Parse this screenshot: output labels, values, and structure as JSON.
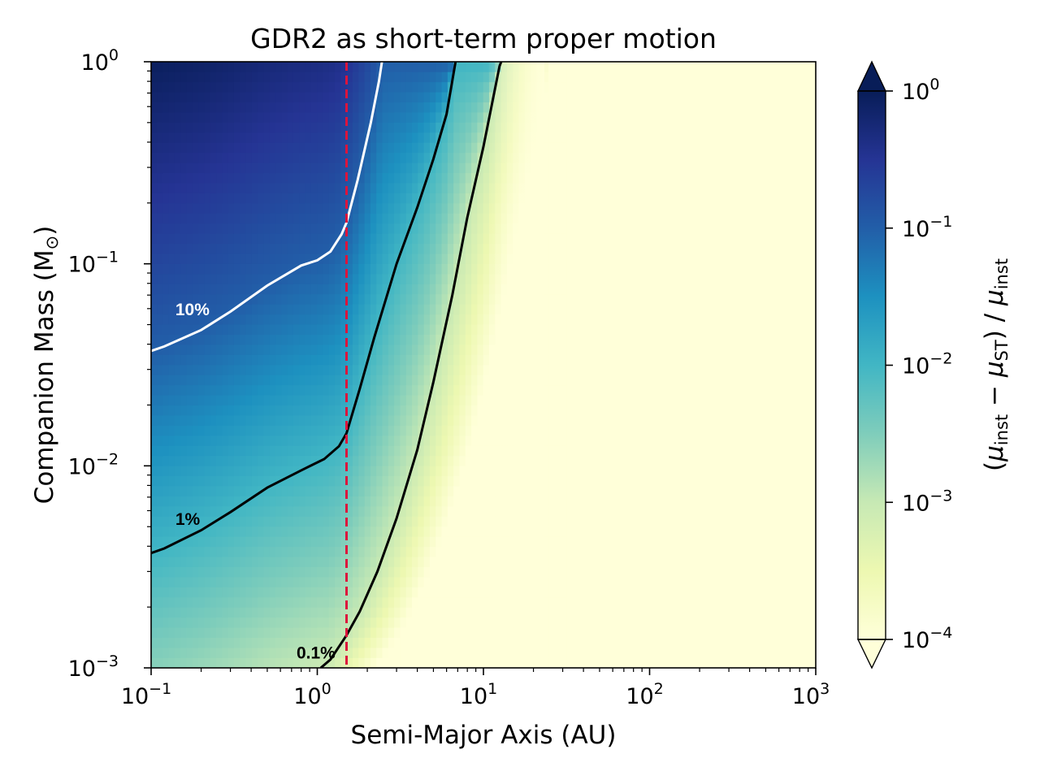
{
  "chart_data": {
    "type": "heatmap",
    "title": "GDR2 as short-term proper motion",
    "xlabel": "Semi-Major Axis (AU)",
    "ylabel": "Companion Mass (M",
    "ylabel_sub": "⊙",
    "ylabel_close": ")",
    "xscale": "log",
    "yscale": "log",
    "xlim": [
      0.1,
      1000
    ],
    "ylim": [
      0.001,
      1
    ],
    "x_ticks": [
      {
        "value": 0.1,
        "base": "10",
        "exp": "−1"
      },
      {
        "value": 1,
        "base": "10",
        "exp": "0"
      },
      {
        "value": 10,
        "base": "10",
        "exp": "1"
      },
      {
        "value": 100,
        "base": "10",
        "exp": "2"
      },
      {
        "value": 1000,
        "base": "10",
        "exp": "3"
      }
    ],
    "y_ticks": [
      {
        "value": 0.001,
        "base": "10",
        "exp": "−3"
      },
      {
        "value": 0.01,
        "base": "10",
        "exp": "−2"
      },
      {
        "value": 0.1,
        "base": "10",
        "exp": "−1"
      },
      {
        "value": 1,
        "base": "10",
        "exp": "0"
      }
    ],
    "colorbar": {
      "scale": "log",
      "range": [
        0.0001,
        1
      ],
      "extend": "both",
      "colormap": "YlGnBu",
      "colormap_stops": [
        "#ffffd9",
        "#edf8b1",
        "#c7e9b4",
        "#7fcdbb",
        "#41b6c4",
        "#1d91c0",
        "#225ea8",
        "#253494",
        "#081d58"
      ],
      "ticks": [
        {
          "value": 0.0001,
          "base": "10",
          "exp": "−4"
        },
        {
          "value": 0.001,
          "base": "10",
          "exp": "−3"
        },
        {
          "value": 0.01,
          "base": "10",
          "exp": "−2"
        },
        {
          "value": 0.1,
          "base": "10",
          "exp": "−1"
        },
        {
          "value": 1,
          "base": "10",
          "exp": "0"
        }
      ],
      "label": {
        "open": "(",
        "mu": "μ",
        "sub_inst": "inst",
        "minus": " − ",
        "sub_st": "ST",
        "close": ") / "
      }
    },
    "contours": [
      {
        "level": 0.1,
        "label": "10%",
        "color": "#ffffff",
        "label_at": [
          0.14,
          0.06
        ],
        "points": [
          [
            0.1,
            0.037
          ],
          [
            0.12,
            0.039
          ],
          [
            0.2,
            0.047
          ],
          [
            0.3,
            0.058
          ],
          [
            0.5,
            0.078
          ],
          [
            0.8,
            0.098
          ],
          [
            1.0,
            0.104
          ],
          [
            1.2,
            0.115
          ],
          [
            1.4,
            0.14
          ],
          [
            1.5,
            0.16
          ],
          [
            1.75,
            0.26
          ],
          [
            2.1,
            0.5
          ],
          [
            2.35,
            0.8
          ],
          [
            2.45,
            1.0
          ]
        ]
      },
      {
        "level": 0.01,
        "label": "1%",
        "color": "#000000",
        "label_at": [
          0.14,
          0.0055
        ],
        "points": [
          [
            0.1,
            0.0037
          ],
          [
            0.12,
            0.0039
          ],
          [
            0.2,
            0.0048
          ],
          [
            0.3,
            0.0059
          ],
          [
            0.5,
            0.0078
          ],
          [
            0.8,
            0.0095
          ],
          [
            1.1,
            0.0108
          ],
          [
            1.35,
            0.0125
          ],
          [
            1.5,
            0.0145
          ],
          [
            1.8,
            0.024
          ],
          [
            2.2,
            0.043
          ],
          [
            3.0,
            0.1
          ],
          [
            4.0,
            0.19
          ],
          [
            5.0,
            0.33
          ],
          [
            6.0,
            0.55
          ],
          [
            6.8,
            1.0
          ]
        ]
      },
      {
        "level": 0.001,
        "label": "0.1%",
        "color": "#000000",
        "label_at": [
          0.75,
          0.0012
        ],
        "points": [
          [
            1.05,
            0.001
          ],
          [
            1.2,
            0.0011
          ],
          [
            1.5,
            0.00145
          ],
          [
            1.8,
            0.0019
          ],
          [
            2.3,
            0.003
          ],
          [
            3.0,
            0.0055
          ],
          [
            4.0,
            0.012
          ],
          [
            5.0,
            0.026
          ],
          [
            6.5,
            0.07
          ],
          [
            8.0,
            0.17
          ],
          [
            10.0,
            0.38
          ],
          [
            12.5,
            0.95
          ],
          [
            12.8,
            1.0
          ]
        ]
      }
    ],
    "vline": {
      "x": 1.5,
      "color": "#dc143c",
      "style": "dashed"
    }
  }
}
